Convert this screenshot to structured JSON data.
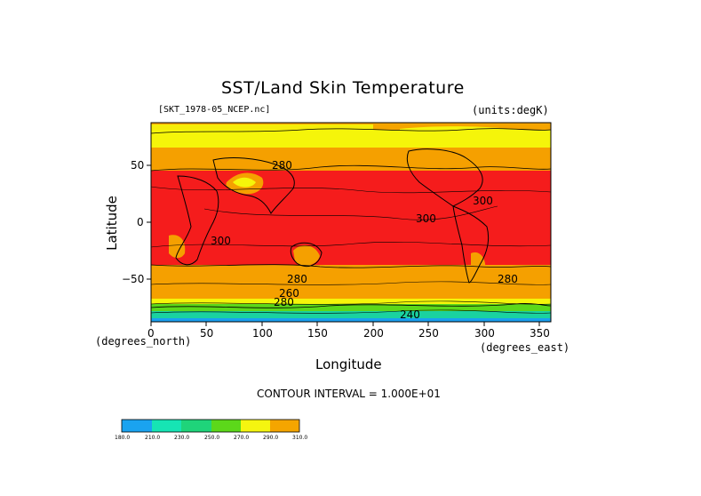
{
  "title": "SST/Land Skin Temperature",
  "file_label": "[SKT_1978-05_NCEP.nc]",
  "units_label": "(units:degK)",
  "axes": {
    "ylabel": "Latitude",
    "xlabel": "Longitude",
    "x_unit_left": "(degrees_north)",
    "x_unit_right": "(degrees_east)",
    "xticks": [
      "0",
      "50",
      "100",
      "150",
      "200",
      "250",
      "300",
      "350"
    ],
    "yticks": [
      "50",
      "0",
      "−50"
    ],
    "xlim": [
      0,
      360
    ],
    "ylim": [
      -90,
      90
    ]
  },
  "contour_interval_text": "CONTOUR INTERVAL = 1.000E+01",
  "contour_labels": [
    "280",
    "300",
    "300",
    "300",
    "280",
    "280",
    "260",
    "240",
    "280"
  ],
  "colorbar": {
    "labels": [
      "180.0",
      "210.0",
      "230.0",
      "250.0",
      "270.0",
      "290.0",
      "310.0"
    ],
    "colors": [
      "#1aa3f0",
      "#16e4b4",
      "#1fd47a",
      "#5cd81a",
      "#f5f510",
      "#f5a500",
      "#f01818"
    ]
  },
  "colors": {
    "band_warm": "#f51c1c",
    "band_mid": "#f5a000",
    "band_cold": "#f5f50a",
    "band_green": "#5cd81a",
    "band_teal": "#1ad2a0",
    "band_blue": "#1aa0f0"
  }
}
